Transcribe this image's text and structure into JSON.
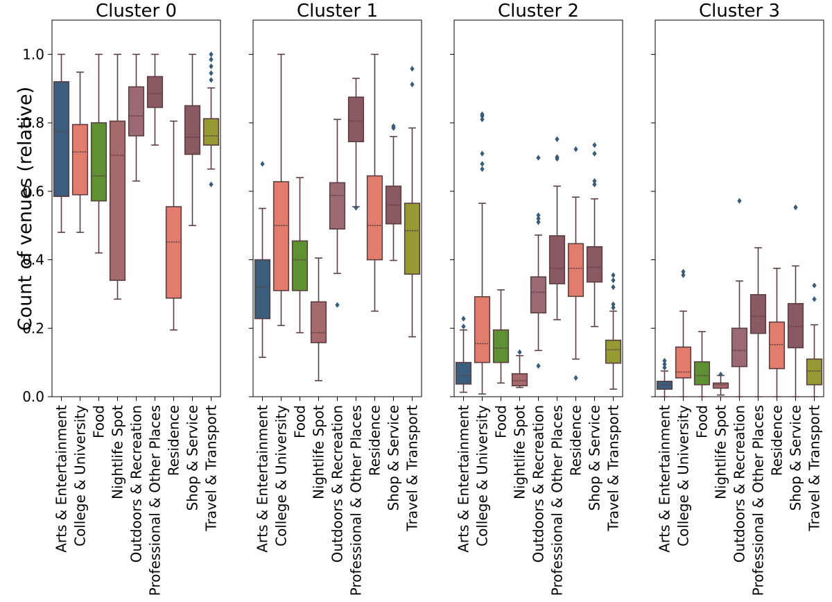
{
  "chart_data": {
    "type": "box",
    "ylabel": "Count of venues (relative)",
    "ylim": [
      0,
      1.1
    ],
    "yticks": [
      "0.0",
      "0.2",
      "0.4",
      "0.6",
      "0.8",
      "1.0"
    ],
    "ytick_values": [
      0,
      0.2,
      0.4,
      0.6,
      0.8,
      1.0
    ],
    "shared_y": true,
    "grid": false,
    "categories": [
      "Arts & Entertainment",
      "College & University",
      "Food",
      "Nightlife Spot",
      "Outdoors & Recreation",
      "Professional & Other Places",
      "Residence",
      "Shop & Service",
      "Travel & Transport"
    ],
    "colors": {
      "Arts & Entertainment": "#3a5f7e",
      "College & University": "#e27c6c",
      "Food": "#5e9131",
      "Nightlife Spot": "#a66a6c",
      "Outdoors & Recreation": "#9b6a72",
      "Professional & Other Places": "#8a5a62",
      "Residence": "#e27c6c",
      "Shop & Service": "#8a5a62",
      "Travel & Transport": "#959a33"
    },
    "clusters": [
      {
        "title": "Cluster 0",
        "boxes": [
          {
            "whislo": 0.48,
            "q1": 0.585,
            "med": 0.775,
            "q3": 0.92,
            "whishi": 1.0,
            "fliers": []
          },
          {
            "whislo": 0.48,
            "q1": 0.59,
            "med": 0.715,
            "q3": 0.795,
            "whishi": 0.948,
            "fliers": []
          },
          {
            "whislo": 0.42,
            "q1": 0.572,
            "med": 0.645,
            "q3": 0.8,
            "whishi": 1.0,
            "fliers": []
          },
          {
            "whislo": 0.285,
            "q1": 0.34,
            "med": 0.705,
            "q3": 0.805,
            "whishi": 1.0,
            "fliers": []
          },
          {
            "whislo": 0.63,
            "q1": 0.762,
            "med": 0.82,
            "q3": 0.905,
            "whishi": 1.0,
            "fliers": []
          },
          {
            "whislo": 0.735,
            "q1": 0.845,
            "med": 0.885,
            "q3": 0.935,
            "whishi": 1.0,
            "fliers": []
          },
          {
            "whislo": 0.195,
            "q1": 0.288,
            "med": 0.452,
            "q3": 0.555,
            "whishi": 0.805,
            "fliers": []
          },
          {
            "whislo": 0.5,
            "q1": 0.708,
            "med": 0.758,
            "q3": 0.85,
            "whishi": 1.0,
            "fliers": []
          },
          {
            "whislo": 0.665,
            "q1": 0.735,
            "med": 0.762,
            "q3": 0.812,
            "whishi": 0.902,
            "fliers": [
              0.62,
              0.925,
              0.945,
              0.965,
              0.985,
              1.0
            ]
          }
        ]
      },
      {
        "title": "Cluster 1",
        "boxes": [
          {
            "whislo": 0.115,
            "q1": 0.228,
            "med": 0.32,
            "q3": 0.4,
            "whishi": 0.55,
            "fliers": [
              0.68
            ]
          },
          {
            "whislo": 0.208,
            "q1": 0.31,
            "med": 0.5,
            "q3": 0.628,
            "whishi": 1.0,
            "fliers": []
          },
          {
            "whislo": 0.187,
            "q1": 0.31,
            "med": 0.4,
            "q3": 0.455,
            "whishi": 0.64,
            "fliers": []
          },
          {
            "whislo": 0.047,
            "q1": 0.158,
            "med": 0.187,
            "q3": 0.277,
            "whishi": 0.405,
            "fliers": []
          },
          {
            "whislo": 0.36,
            "q1": 0.49,
            "med": 0.588,
            "q3": 0.625,
            "whishi": 0.81,
            "fliers": [
              0.268
            ]
          },
          {
            "whislo": 0.555,
            "q1": 0.745,
            "med": 0.805,
            "q3": 0.875,
            "whishi": 0.93,
            "fliers": [
              0.552
            ]
          },
          {
            "whislo": 0.25,
            "q1": 0.4,
            "med": 0.5,
            "q3": 0.645,
            "whishi": 1.0,
            "fliers": []
          },
          {
            "whislo": 0.398,
            "q1": 0.505,
            "med": 0.56,
            "q3": 0.615,
            "whishi": 0.76,
            "fliers": [
              0.785,
              0.79
            ]
          },
          {
            "whislo": 0.175,
            "q1": 0.358,
            "med": 0.485,
            "q3": 0.565,
            "whishi": 0.785,
            "fliers": [
              0.912,
              0.958
            ]
          }
        ]
      },
      {
        "title": "Cluster 2",
        "boxes": [
          {
            "whislo": 0.013,
            "q1": 0.037,
            "med": 0.062,
            "q3": 0.1,
            "whishi": 0.195,
            "fliers": [
              0.205,
              0.228
            ]
          },
          {
            "whislo": 0.008,
            "q1": 0.1,
            "med": 0.155,
            "q3": 0.292,
            "whishi": 0.565,
            "fliers": [
              0.665,
              0.68,
              0.71,
              0.81,
              0.82,
              0.825
            ]
          },
          {
            "whislo": 0.04,
            "q1": 0.1,
            "med": 0.142,
            "q3": 0.195,
            "whishi": 0.312,
            "fliers": []
          },
          {
            "whislo": 0.027,
            "q1": 0.032,
            "med": 0.047,
            "q3": 0.067,
            "whishi": 0.12,
            "fliers": [
              0.13
            ]
          },
          {
            "whislo": 0.135,
            "q1": 0.245,
            "med": 0.305,
            "q3": 0.35,
            "whishi": 0.472,
            "fliers": [
              0.09,
              0.51,
              0.52,
              0.53,
              0.698
            ]
          },
          {
            "whislo": 0.225,
            "q1": 0.33,
            "med": 0.375,
            "q3": 0.47,
            "whishi": 0.615,
            "fliers": [
              0.695,
              0.7,
              0.752
            ]
          },
          {
            "whislo": 0.11,
            "q1": 0.293,
            "med": 0.375,
            "q3": 0.447,
            "whishi": 0.583,
            "fliers": [
              0.055,
              0.723
            ]
          },
          {
            "whislo": 0.205,
            "q1": 0.335,
            "med": 0.378,
            "q3": 0.438,
            "whishi": 0.578,
            "fliers": [
              0.62,
              0.63,
              0.71,
              0.735
            ]
          },
          {
            "whislo": 0.022,
            "q1": 0.098,
            "med": 0.137,
            "q3": 0.165,
            "whishi": 0.25,
            "fliers": [
              0.26,
              0.27,
              0.32,
              0.34,
              0.355
            ]
          }
        ]
      },
      {
        "title": "Cluster 3",
        "boxes": [
          {
            "whislo": 0.0,
            "q1": 0.022,
            "med": 0.035,
            "q3": 0.045,
            "whishi": 0.075,
            "fliers": [
              0.085,
              0.095,
              0.105
            ]
          },
          {
            "whislo": 0.0,
            "q1": 0.055,
            "med": 0.072,
            "q3": 0.145,
            "whishi": 0.25,
            "fliers": [
              0.355,
              0.365
            ]
          },
          {
            "whislo": 0.0,
            "q1": 0.035,
            "med": 0.062,
            "q3": 0.102,
            "whishi": 0.19,
            "fliers": []
          },
          {
            "whislo": 0.005,
            "q1": 0.025,
            "med": 0.035,
            "q3": 0.04,
            "whishi": 0.062,
            "fliers": [
              0.065
            ]
          },
          {
            "whislo": 0.0,
            "q1": 0.088,
            "med": 0.135,
            "q3": 0.2,
            "whishi": 0.338,
            "fliers": [
              0.572
            ]
          },
          {
            "whislo": 0.0,
            "q1": 0.185,
            "med": 0.235,
            "q3": 0.298,
            "whishi": 0.435,
            "fliers": []
          },
          {
            "whislo": 0.0,
            "q1": 0.082,
            "med": 0.152,
            "q3": 0.218,
            "whishi": 0.375,
            "fliers": []
          },
          {
            "whislo": 0.0,
            "q1": 0.143,
            "med": 0.205,
            "q3": 0.272,
            "whishi": 0.382,
            "fliers": [
              0.553
            ]
          },
          {
            "whislo": 0.0,
            "q1": 0.035,
            "med": 0.075,
            "q3": 0.11,
            "whishi": 0.21,
            "fliers": [
              0.285,
              0.325
            ]
          }
        ]
      }
    ]
  }
}
